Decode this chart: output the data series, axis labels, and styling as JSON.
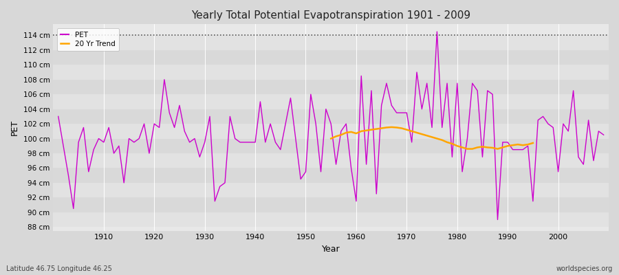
{
  "title": "Yearly Total Potential Evapotranspiration 1901 - 2009",
  "xlabel": "Year",
  "ylabel": "PET",
  "footer_left": "Latitude 46.75 Longitude 46.25",
  "footer_right": "worldspecies.org",
  "ylim": [
    87.5,
    115.5
  ],
  "ytick_labels": [
    "88 cm",
    "90 cm",
    "92 cm",
    "94 cm",
    "96 cm",
    "98 cm",
    "100 cm",
    "102 cm",
    "104 cm",
    "106 cm",
    "108 cm",
    "110 cm",
    "112 cm",
    "114 cm"
  ],
  "ytick_values": [
    88,
    90,
    92,
    94,
    96,
    98,
    100,
    102,
    104,
    106,
    108,
    110,
    112,
    114
  ],
  "pet_color": "#cc00cc",
  "trend_color": "#ffa500",
  "bg_color": "#d8d8d8",
  "plot_bg_color": "#e8e8e8",
  "legend_bg": "#ffffff",
  "hline_y": 114,
  "pet_data": {
    "1901": 103,
    "1902": 99,
    "1903": 95,
    "1904": 90.5,
    "1905": 99.5,
    "1906": 101.5,
    "1907": 95.5,
    "1908": 98.5,
    "1909": 100,
    "1910": 99.5,
    "1911": 101.5,
    "1912": 98,
    "1913": 99,
    "1914": 94,
    "1915": 100,
    "1916": 99.5,
    "1917": 100,
    "1918": 102,
    "1919": 98,
    "1920": 102,
    "1921": 101.5,
    "1922": 108,
    "1923": 103.5,
    "1924": 101.5,
    "1925": 104.5,
    "1926": 101,
    "1927": 99.5,
    "1928": 100,
    "1929": 97.5,
    "1930": 99.5,
    "1931": 103,
    "1932": 91.5,
    "1933": 93.5,
    "1934": 94,
    "1935": 103,
    "1936": 100,
    "1937": 99.5,
    "1938": 99.5,
    "1939": 99.5,
    "1940": 99.5,
    "1941": 105,
    "1942": 99.5,
    "1943": 102,
    "1944": 99.5,
    "1945": 98.5,
    "1946": 102,
    "1947": 105.5,
    "1948": 100,
    "1949": 94.5,
    "1950": 95.5,
    "1951": 106,
    "1952": 102,
    "1953": 95.5,
    "1954": 104,
    "1955": 102,
    "1956": 96.5,
    "1957": 101,
    "1958": 102,
    "1959": 96,
    "1960": 91.5,
    "1961": 108.5,
    "1962": 96.5,
    "1963": 106.5,
    "1964": 92.5,
    "1965": 104.5,
    "1966": 107.5,
    "1967": 104.5,
    "1968": 103.5,
    "1969": 103.5,
    "1970": 103.5,
    "1971": 99.5,
    "1972": 109,
    "1973": 104,
    "1974": 107.5,
    "1975": 101.5,
    "1976": 114.5,
    "1977": 101.5,
    "1978": 107.5,
    "1979": 97.5,
    "1980": 107.5,
    "1981": 95.5,
    "1982": 100,
    "1983": 107.5,
    "1984": 106.5,
    "1985": 97.5,
    "1986": 106.5,
    "1987": 106,
    "1988": 89,
    "1989": 99.5,
    "1990": 99.5,
    "1991": 98.5,
    "1992": 98.5,
    "1993": 98.5,
    "1994": 99,
    "1995": 91.5,
    "1996": 102.5,
    "1997": 103,
    "1998": 102,
    "1999": 101.5,
    "2000": 95.5,
    "2001": 102,
    "2002": 101,
    "2003": 106.5,
    "2004": 97.5,
    "2005": 96.5,
    "2006": 102.5,
    "2007": 97,
    "2008": 101,
    "2009": 100.5
  },
  "trend_data": {
    "1955": 100.0,
    "1956": 100.3,
    "1957": 100.5,
    "1958": 100.8,
    "1959": 100.9,
    "1960": 100.7,
    "1961": 101.0,
    "1962": 101.1,
    "1963": 101.2,
    "1964": 101.3,
    "1965": 101.4,
    "1966": 101.5,
    "1967": 101.55,
    "1968": 101.5,
    "1969": 101.4,
    "1970": 101.2,
    "1971": 101.0,
    "1972": 100.8,
    "1973": 100.6,
    "1974": 100.4,
    "1975": 100.2,
    "1976": 100.0,
    "1977": 99.8,
    "1978": 99.5,
    "1979": 99.3,
    "1980": 99.0,
    "1981": 98.8,
    "1982": 98.6,
    "1983": 98.6,
    "1984": 98.8,
    "1985": 98.9,
    "1986": 98.8,
    "1987": 98.75,
    "1988": 98.6,
    "1989": 98.8,
    "1990": 99.0,
    "1991": 99.1,
    "1992": 99.2,
    "1993": 99.1,
    "1994": 99.2,
    "1995": 99.4
  }
}
